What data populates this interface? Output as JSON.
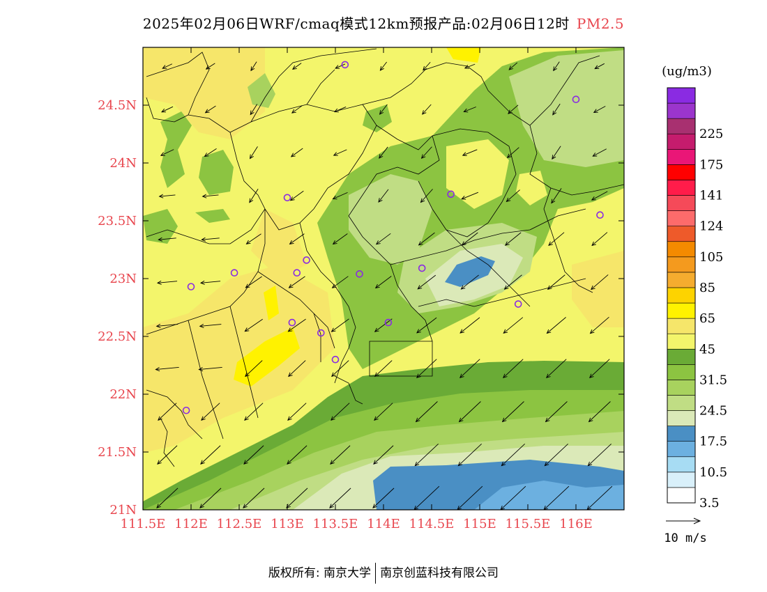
{
  "title": {
    "text": "2025年02月06日WRF/cmaq模式12km预报产品:02月06日12时",
    "pollutant": "PM2.5",
    "pollutant_color": "#e8454d"
  },
  "map": {
    "lon_range": [
      111.5,
      116.5
    ],
    "lat_range": [
      21.0,
      25.0
    ],
    "lon_ticks": [
      {
        "v": 111.5,
        "label": "111.5E"
      },
      {
        "v": 112,
        "label": "112E"
      },
      {
        "v": 112.5,
        "label": "112.5E"
      },
      {
        "v": 113,
        "label": "113E"
      },
      {
        "v": 113.5,
        "label": "113.5E"
      },
      {
        "v": 114,
        "label": "114E"
      },
      {
        "v": 114.5,
        "label": "114.5E"
      },
      {
        "v": 115,
        "label": "115E"
      },
      {
        "v": 115.5,
        "label": "115.5E"
      },
      {
        "v": 116,
        "label": "116E"
      }
    ],
    "lat_ticks": [
      {
        "v": 21,
        "label": "21N"
      },
      {
        "v": 21.5,
        "label": "21.5N"
      },
      {
        "v": 22,
        "label": "22N"
      },
      {
        "v": 22.5,
        "label": "22.5N"
      },
      {
        "v": 23,
        "label": "23N"
      },
      {
        "v": 23.5,
        "label": "23.5N"
      },
      {
        "v": 24,
        "label": "24N"
      },
      {
        "v": 24.5,
        "label": "24.5N"
      }
    ],
    "tick_label_color": "#e8454d",
    "stations": [
      {
        "lon": 113.6,
        "lat": 24.85
      },
      {
        "lon": 116.0,
        "lat": 24.55
      },
      {
        "lon": 113.0,
        "lat": 23.7
      },
      {
        "lon": 114.7,
        "lat": 23.73
      },
      {
        "lon": 116.25,
        "lat": 23.55
      },
      {
        "lon": 113.2,
        "lat": 23.16
      },
      {
        "lon": 112.45,
        "lat": 23.05
      },
      {
        "lon": 113.1,
        "lat": 23.05
      },
      {
        "lon": 113.75,
        "lat": 23.04
      },
      {
        "lon": 114.4,
        "lat": 23.09
      },
      {
        "lon": 112.0,
        "lat": 22.93
      },
      {
        "lon": 115.4,
        "lat": 22.78
      },
      {
        "lon": 113.05,
        "lat": 22.62
      },
      {
        "lon": 114.05,
        "lat": 22.62
      },
      {
        "lon": 113.35,
        "lat": 22.53
      },
      {
        "lon": 113.5,
        "lat": 22.3
      },
      {
        "lon": 111.95,
        "lat": 21.86
      }
    ]
  },
  "legend": {
    "unit": "(ug/m3)",
    "bins": [
      {
        "color": "#ffffff",
        "label": "3.5"
      },
      {
        "color": "#d9f0fa",
        "label": ""
      },
      {
        "color": "#a7dcf3",
        "label": "10.5"
      },
      {
        "color": "#6cb0e0",
        "label": ""
      },
      {
        "color": "#4a8fc4",
        "label": "17.5"
      },
      {
        "color": "#dbe9b8",
        "label": ""
      },
      {
        "color": "#c0dd84",
        "label": "24.5"
      },
      {
        "color": "#a8d25e",
        "label": ""
      },
      {
        "color": "#8cc441",
        "label": "31.5"
      },
      {
        "color": "#6aab36",
        "label": ""
      },
      {
        "color": "#f3f56b",
        "label": "45"
      },
      {
        "color": "#f6e66a",
        "label": ""
      },
      {
        "color": "#fff200",
        "label": "65"
      },
      {
        "color": "#fdd300",
        "label": ""
      },
      {
        "color": "#f5ac2f",
        "label": "85"
      },
      {
        "color": "#f49a1e",
        "label": ""
      },
      {
        "color": "#f48a00",
        "label": "105"
      },
      {
        "color": "#ee5a2a",
        "label": ""
      },
      {
        "color": "#fd6b6b",
        "label": "124"
      },
      {
        "color": "#f54a59",
        "label": ""
      },
      {
        "color": "#ff1c4a",
        "label": "141"
      },
      {
        "color": "#ff0000",
        "label": ""
      },
      {
        "color": "#ea1677",
        "label": "175"
      },
      {
        "color": "#c51c6d",
        "label": ""
      },
      {
        "color": "#a83070",
        "label": "225"
      },
      {
        "color": "#9b35cc",
        "label": ""
      },
      {
        "color": "#8a2be2",
        "label": ""
      }
    ],
    "wind_ref_label": "10 m/s"
  },
  "footer": {
    "copyright": "版权所有: 南京大学",
    "company": "南京创蓝科技有限公司"
  }
}
